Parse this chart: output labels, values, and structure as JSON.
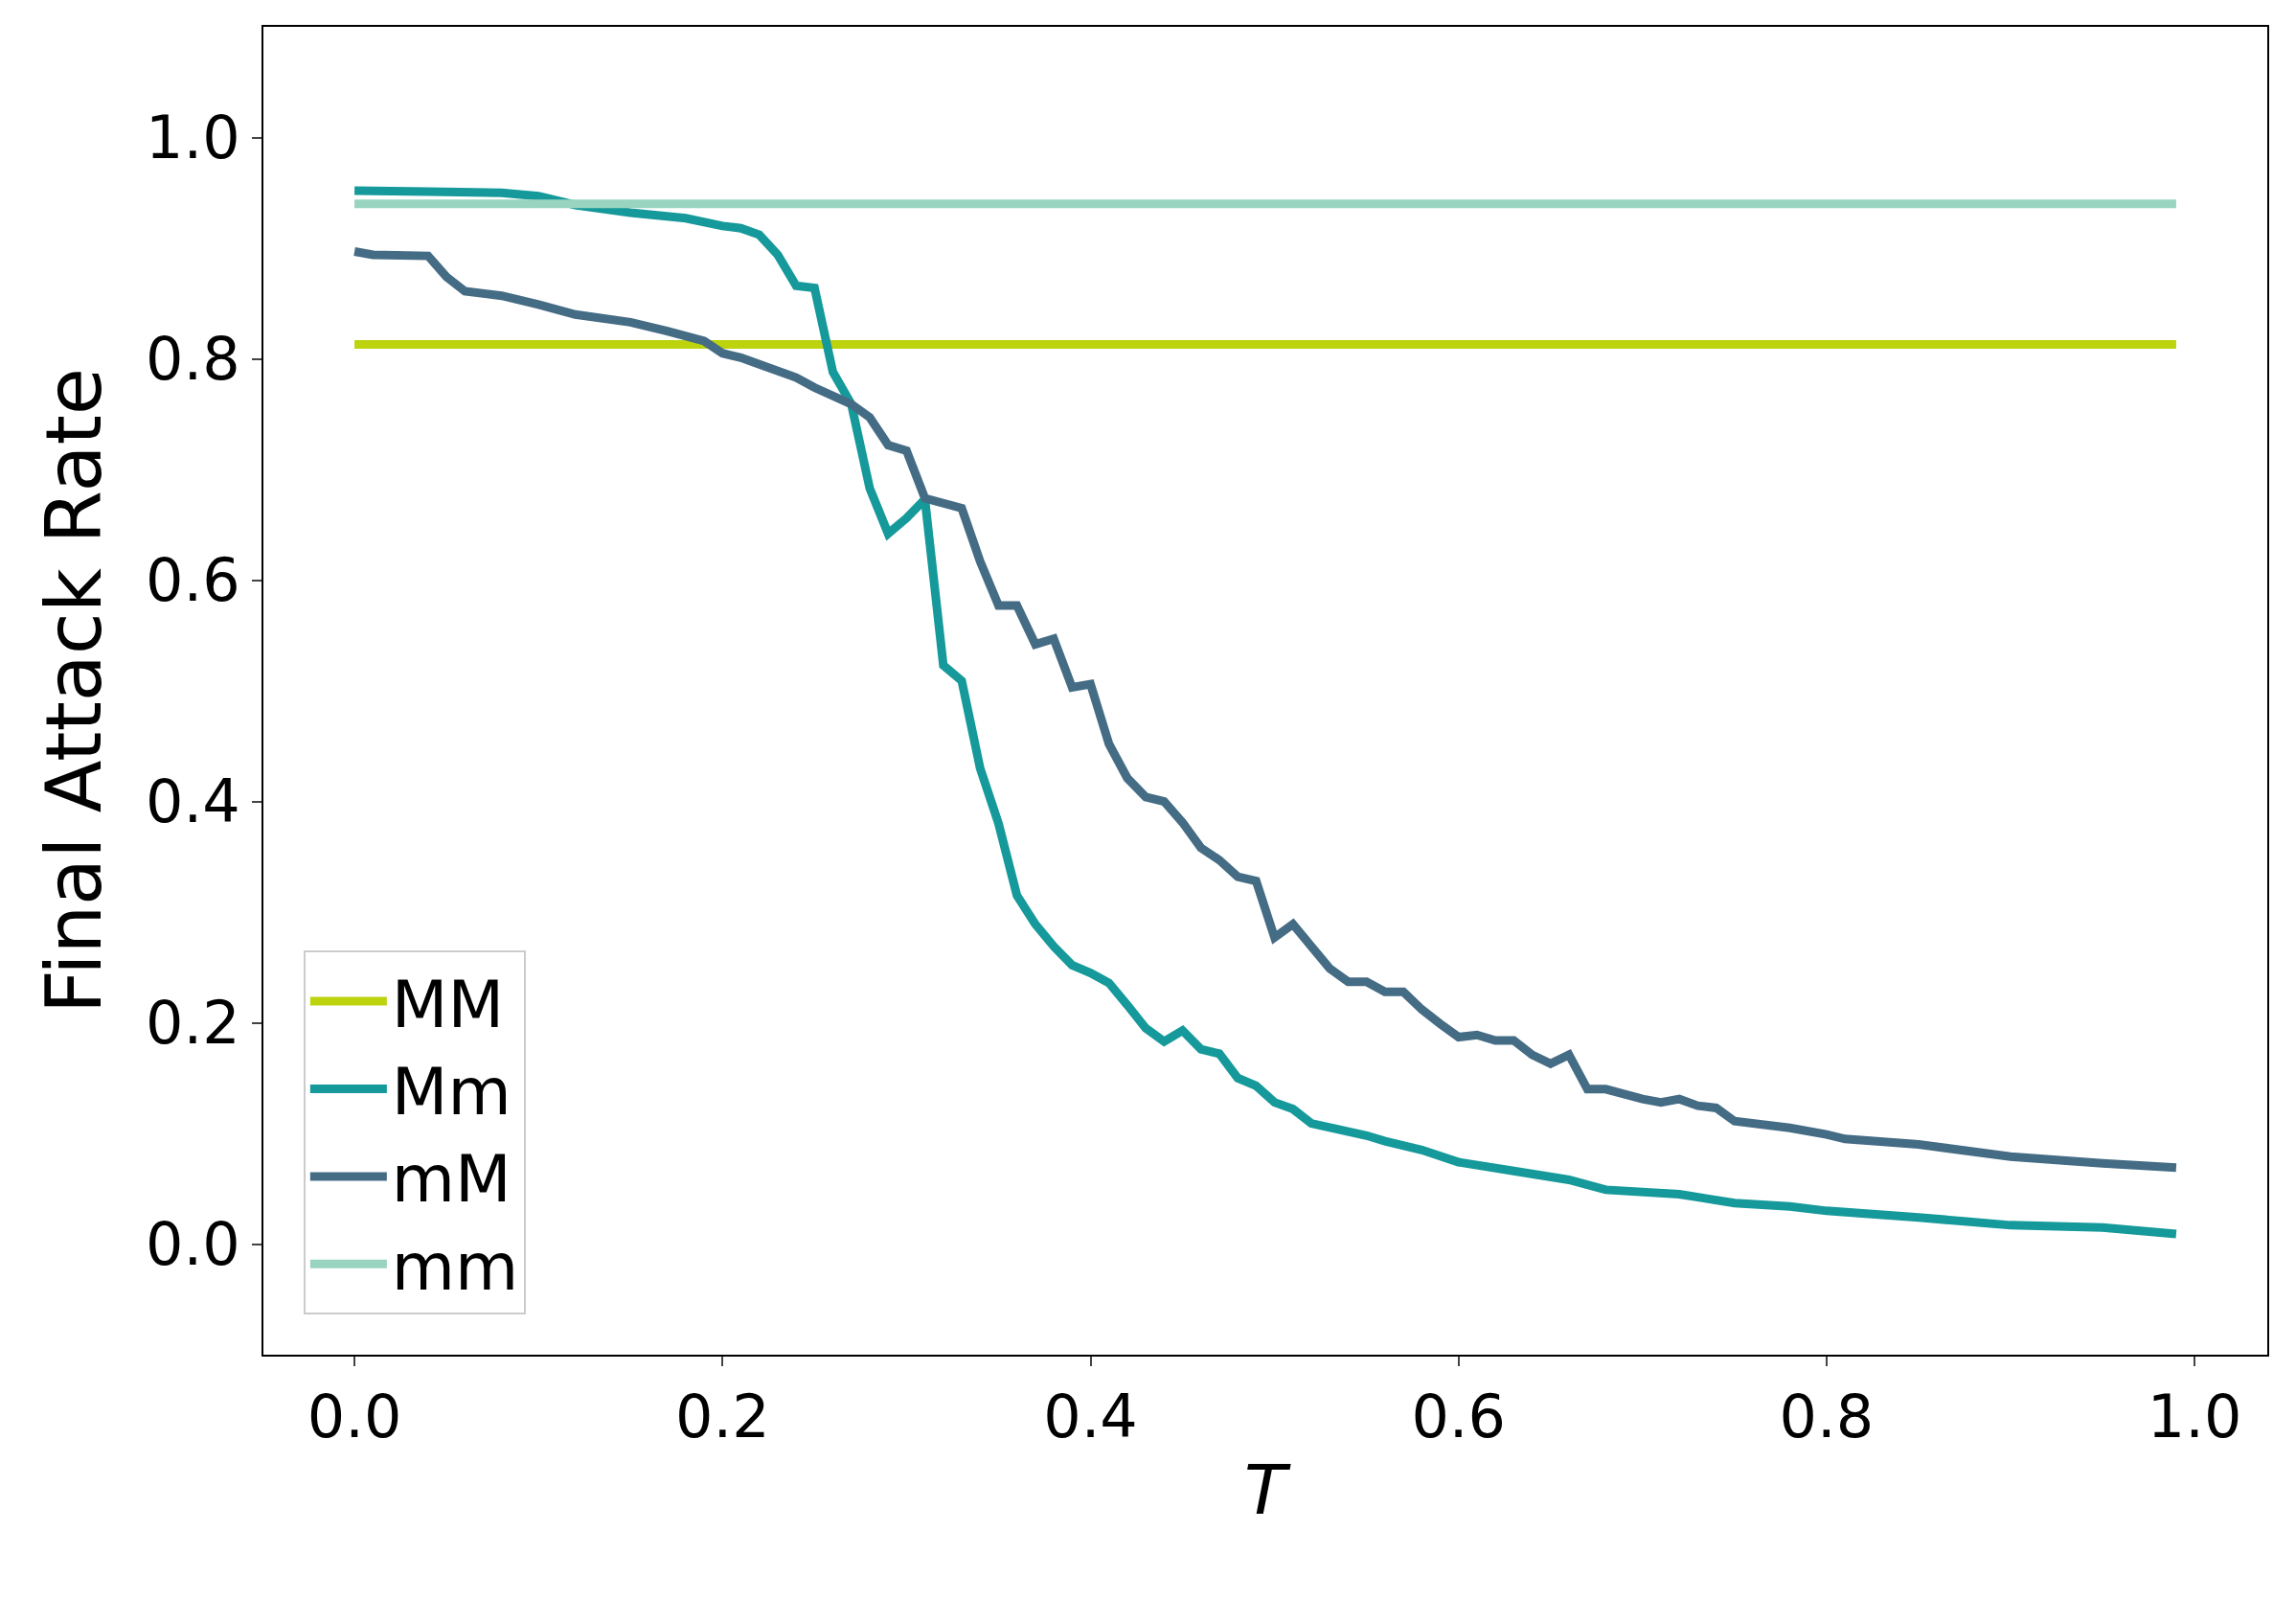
{
  "chart_data": {
    "type": "line",
    "xlabel": "T",
    "ylabel": "Final Attack Rate",
    "xlim": [
      -0.0495,
      1.0395
    ],
    "ylim": [
      -0.1,
      1.1
    ],
    "xticks": [
      {
        "value": 0,
        "label": "0.0"
      },
      0.2,
      0.4,
      0.6,
      0.8,
      {
        "value": 1,
        "label": "1.0"
      }
    ],
    "yticks": [
      {
        "value": 0,
        "label": "0.0"
      },
      0.2,
      0.4,
      0.6,
      0.8,
      {
        "value": 1,
        "label": "1.0"
      }
    ],
    "grid": false,
    "legend": "bottom left",
    "marker": "none",
    "line_style": "solid",
    "series": [
      {
        "name": "MM",
        "color": "#bcd30d",
        "x": [
          0,
          0.99
        ],
        "values": [
          0.813,
          0.813
        ]
      },
      {
        "name": "Mm",
        "color": "#16999a",
        "x": [
          0,
          0.04,
          0.08,
          0.1,
          0.12,
          0.15,
          0.18,
          0.2,
          0.21,
          0.22,
          0.23,
          0.24,
          0.25,
          0.26,
          0.27,
          0.28,
          0.29,
          0.3,
          0.31,
          0.32,
          0.33,
          0.34,
          0.35,
          0.36,
          0.37,
          0.38,
          0.39,
          0.4,
          0.41,
          0.42,
          0.43,
          0.44,
          0.45,
          0.46,
          0.47,
          0.48,
          0.49,
          0.5,
          0.51,
          0.52,
          0.55,
          0.56,
          0.58,
          0.6,
          0.63,
          0.66,
          0.68,
          0.72,
          0.75,
          0.78,
          0.8,
          0.85,
          0.9,
          0.95,
          0.99
        ],
        "values": [
          0.952,
          0.951,
          0.95,
          0.947,
          0.939,
          0.932,
          0.927,
          0.92,
          0.918,
          0.912,
          0.894,
          0.866,
          0.864,
          0.788,
          0.759,
          0.683,
          0.642,
          0.656,
          0.673,
          0.523,
          0.509,
          0.43,
          0.38,
          0.315,
          0.289,
          0.269,
          0.252,
          0.245,
          0.236,
          0.216,
          0.195,
          0.183,
          0.193,
          0.176,
          0.172,
          0.15,
          0.143,
          0.128,
          0.122,
          0.109,
          0.098,
          0.093,
          0.085,
          0.074,
          0.066,
          0.058,
          0.049,
          0.045,
          0.037,
          0.034,
          0.03,
          0.024,
          0.017,
          0.015,
          0.009
        ]
      },
      {
        "name": "mM",
        "color": "#456c85",
        "x": [
          0,
          0.01,
          0.04,
          0.05,
          0.06,
          0.08,
          0.1,
          0.12,
          0.15,
          0.17,
          0.19,
          0.2,
          0.21,
          0.22,
          0.24,
          0.25,
          0.27,
          0.28,
          0.29,
          0.3,
          0.31,
          0.33,
          0.34,
          0.35,
          0.36,
          0.37,
          0.38,
          0.39,
          0.4,
          0.41,
          0.42,
          0.43,
          0.44,
          0.45,
          0.46,
          0.47,
          0.48,
          0.49,
          0.5,
          0.51,
          0.52,
          0.53,
          0.54,
          0.55,
          0.56,
          0.57,
          0.58,
          0.59,
          0.6,
          0.61,
          0.62,
          0.63,
          0.64,
          0.65,
          0.66,
          0.67,
          0.68,
          0.7,
          0.71,
          0.72,
          0.73,
          0.74,
          0.75,
          0.78,
          0.8,
          0.81,
          0.85,
          0.9,
          0.95,
          0.99
        ],
        "values": [
          0.897,
          0.894,
          0.893,
          0.874,
          0.861,
          0.857,
          0.849,
          0.84,
          0.833,
          0.825,
          0.816,
          0.805,
          0.801,
          0.795,
          0.783,
          0.774,
          0.759,
          0.747,
          0.722,
          0.717,
          0.674,
          0.665,
          0.617,
          0.577,
          0.577,
          0.542,
          0.547,
          0.503,
          0.506,
          0.452,
          0.421,
          0.404,
          0.4,
          0.381,
          0.358,
          0.347,
          0.332,
          0.328,
          0.277,
          0.289,
          0.269,
          0.249,
          0.237,
          0.237,
          0.228,
          0.228,
          0.212,
          0.199,
          0.187,
          0.189,
          0.184,
          0.184,
          0.171,
          0.163,
          0.171,
          0.14,
          0.14,
          0.131,
          0.128,
          0.131,
          0.125,
          0.123,
          0.111,
          0.105,
          0.099,
          0.095,
          0.09,
          0.079,
          0.073,
          0.069
        ]
      },
      {
        "name": "mm",
        "color": "#98d4bf",
        "x": [
          0,
          0.99
        ],
        "values": [
          0.94,
          0.94
        ]
      }
    ]
  }
}
